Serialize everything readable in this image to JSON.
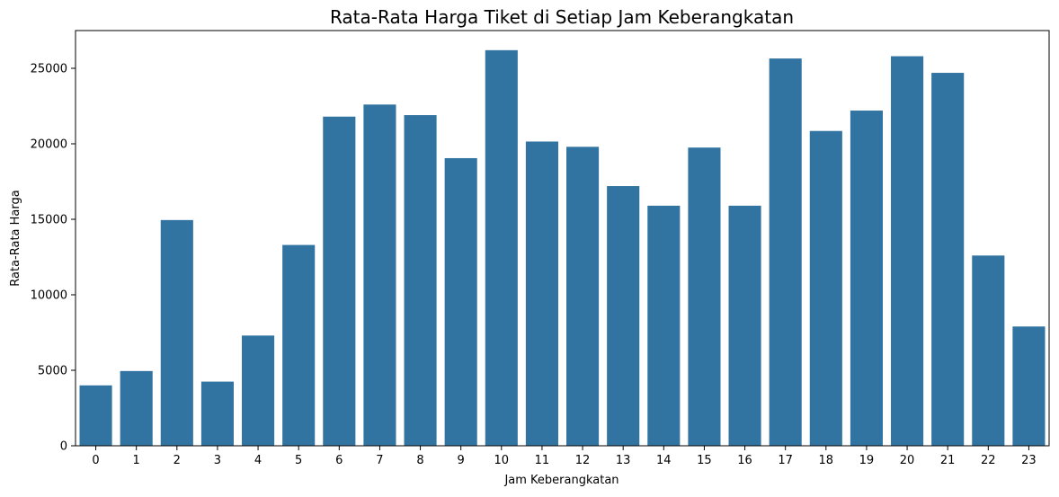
{
  "chart_data": {
    "type": "bar",
    "title": "Rata-Rata Harga Tiket di Setiap Jam Keberangkatan",
    "xlabel": "Jam Keberangkatan",
    "ylabel": "Rata-Rata Harga",
    "categories": [
      "0",
      "1",
      "2",
      "3",
      "4",
      "5",
      "6",
      "7",
      "8",
      "9",
      "10",
      "11",
      "12",
      "13",
      "14",
      "15",
      "16",
      "17",
      "18",
      "19",
      "20",
      "21",
      "22",
      "23"
    ],
    "values": [
      4000,
      4950,
      14950,
      4250,
      7300,
      13300,
      21800,
      22600,
      21900,
      19050,
      26200,
      20150,
      19800,
      17200,
      15900,
      19750,
      15900,
      25650,
      20850,
      22200,
      25800,
      24700,
      12600,
      7900
    ],
    "ylim": [
      0,
      27500
    ],
    "yticks": [
      0,
      5000,
      10000,
      15000,
      20000,
      25000
    ],
    "ytick_labels": [
      "0",
      "5000",
      "10000",
      "15000",
      "20000",
      "25000"
    ],
    "bar_color": "#3274a1",
    "grid": false,
    "legend": "none"
  }
}
